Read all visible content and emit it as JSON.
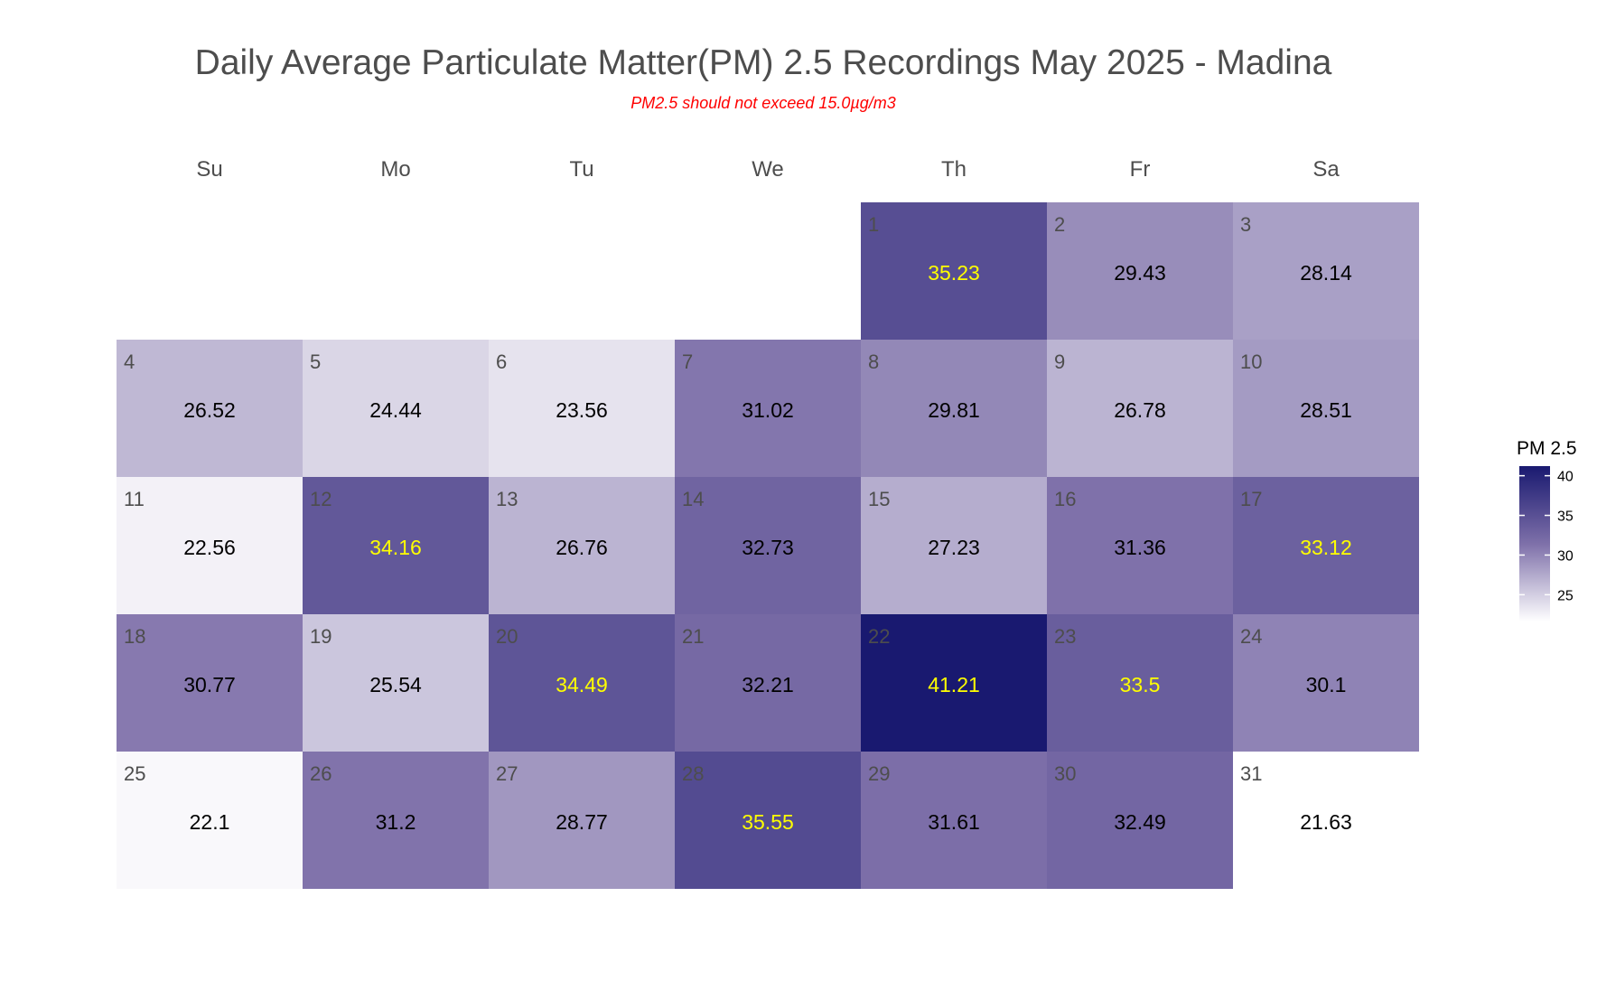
{
  "chart_data": {
    "type": "heatmap",
    "title": "Daily Average Particulate Matter(PM) 2.5 Recordings May 2025 -  Madina",
    "subtitle": "PM2.5 should not exceed 15.0µg/m3",
    "weekdays": [
      "Su",
      "Mo",
      "Tu",
      "We",
      "Th",
      "Fr",
      "Sa"
    ],
    "first_weekday_index": 4,
    "days": [
      1,
      2,
      3,
      4,
      5,
      6,
      7,
      8,
      9,
      10,
      11,
      12,
      13,
      14,
      15,
      16,
      17,
      18,
      19,
      20,
      21,
      22,
      23,
      24,
      25,
      26,
      27,
      28,
      29,
      30,
      31
    ],
    "values": [
      35.23,
      29.43,
      28.14,
      26.52,
      24.44,
      23.56,
      31.02,
      29.81,
      26.78,
      28.51,
      22.56,
      34.16,
      26.76,
      32.73,
      27.23,
      31.36,
      33.12,
      30.77,
      25.54,
      34.49,
      32.21,
      41.21,
      33.5,
      30.1,
      22.1,
      31.2,
      28.77,
      35.55,
      31.61,
      32.49,
      21.63
    ],
    "value_labels": [
      "35.23",
      "29.43",
      "28.14",
      "26.52",
      "24.44",
      "23.56",
      "31.02",
      "29.81",
      "26.78",
      "28.51",
      "22.56",
      "34.16",
      "26.76",
      "32.73",
      "27.23",
      "31.36",
      "33.12",
      "30.77",
      "25.54",
      "34.49",
      "32.21",
      "41.21",
      "33.5",
      "30.1",
      "22.1",
      "31.2",
      "28.77",
      "35.55",
      "31.61",
      "32.49",
      "21.63"
    ],
    "yellow_label_threshold": 33,
    "legend": {
      "title": "PM 2.5",
      "ticks": [
        25,
        30,
        35,
        40
      ],
      "tick_labels": [
        "25",
        "30",
        "35",
        "40"
      ],
      "range": [
        21.63,
        41.21
      ],
      "position": "right"
    },
    "colors": {
      "low": "#ffffff",
      "mid": "#7e70a9",
      "high": "#191970",
      "label_high": "#ffff00",
      "label_normal": "#000000",
      "day_number": "#4d4d4d",
      "weekday": "#4d4d4d"
    }
  }
}
